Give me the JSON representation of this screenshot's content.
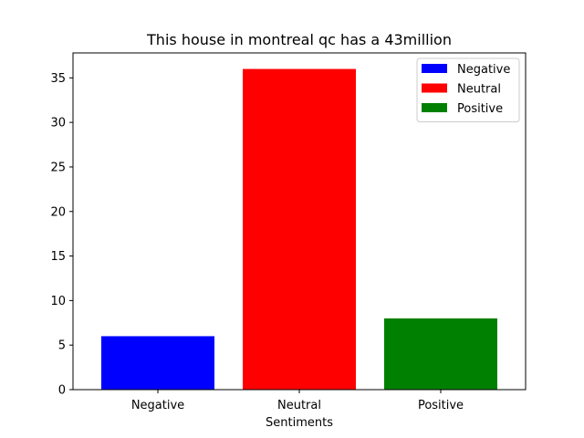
{
  "chart_data": {
    "type": "bar",
    "title": "This house in montreal qc has a 43million",
    "xlabel": "Sentiments",
    "ylabel": "",
    "categories": [
      "Negative",
      "Neutral",
      "Positive"
    ],
    "values": [
      6,
      36,
      8
    ],
    "colors": [
      "#0000ff",
      "#ff0000",
      "#008000"
    ],
    "ylim": [
      0,
      37.8
    ],
    "yticks": [
      0,
      5,
      10,
      15,
      20,
      25,
      30,
      35
    ],
    "grid": false,
    "legend": {
      "placement": "top-right",
      "entries": [
        "Negative",
        "Neutral",
        "Positive"
      ]
    }
  }
}
